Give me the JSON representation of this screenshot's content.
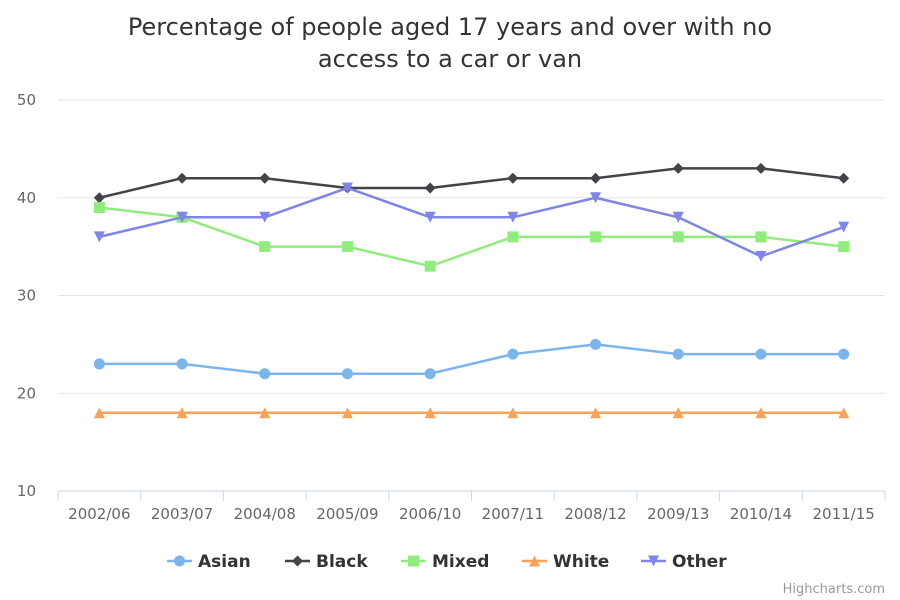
{
  "chart_data": {
    "type": "line",
    "title_lines": [
      "Percentage of people aged 17 years and over with no",
      "access to a car or van"
    ],
    "categories": [
      "2002/06",
      "2003/07",
      "2004/08",
      "2005/09",
      "2006/10",
      "2007/11",
      "2008/12",
      "2009/13",
      "2010/14",
      "2011/15"
    ],
    "ylim": [
      10,
      50
    ],
    "yticks": [
      10,
      20,
      30,
      40,
      50
    ],
    "grid": true,
    "legend_position": "bottom-center",
    "series": [
      {
        "name": "Asian",
        "color": "#7cb5ec",
        "marker": "circle",
        "values": [
          23,
          23,
          22,
          22,
          22,
          24,
          25,
          24,
          24,
          24
        ]
      },
      {
        "name": "Black",
        "color": "#434348",
        "marker": "diamond",
        "values": [
          40,
          42,
          42,
          41,
          41,
          42,
          42,
          43,
          43,
          42
        ]
      },
      {
        "name": "Mixed",
        "color": "#90ed7d",
        "marker": "square",
        "values": [
          39,
          38,
          35,
          35,
          33,
          36,
          36,
          36,
          36,
          35
        ]
      },
      {
        "name": "White",
        "color": "#f7a35c",
        "marker": "triangle",
        "values": [
          18,
          18,
          18,
          18,
          18,
          18,
          18,
          18,
          18,
          18
        ]
      },
      {
        "name": "Other",
        "color": "#8085e9",
        "marker": "triangle-down",
        "values": [
          36,
          38,
          38,
          41,
          38,
          38,
          40,
          38,
          34,
          37
        ]
      }
    ]
  },
  "credits": "Highcharts.com"
}
